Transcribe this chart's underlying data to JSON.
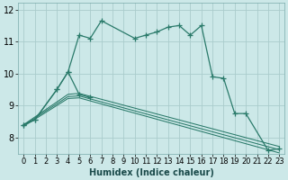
{
  "xlabel": "Humidex (Indice chaleur)",
  "background_color": "#cce8e8",
  "grid_color": "#aacccc",
  "line_color": "#2a7a6a",
  "xlim": [
    -0.5,
    23.5
  ],
  "ylim": [
    7.5,
    12.2
  ],
  "yticks": [
    8,
    9,
    10,
    11,
    12
  ],
  "xticks": [
    0,
    1,
    2,
    3,
    4,
    5,
    6,
    7,
    8,
    9,
    10,
    11,
    12,
    13,
    14,
    15,
    16,
    17,
    18,
    19,
    20,
    21,
    22,
    23
  ],
  "curve1_x": [
    0,
    1,
    3,
    4,
    5,
    6,
    7,
    10,
    11,
    12,
    13,
    14,
    15,
    16,
    17,
    18,
    19,
    20,
    22,
    23
  ],
  "curve1_y": [
    8.4,
    8.55,
    9.5,
    10.05,
    11.2,
    11.1,
    11.65,
    11.1,
    11.2,
    11.3,
    11.45,
    11.5,
    11.2,
    11.5,
    9.9,
    9.85,
    8.75,
    8.75,
    7.6,
    7.65
  ],
  "curve2_x": [
    0,
    1,
    3,
    4,
    5,
    6
  ],
  "curve2_y": [
    8.4,
    8.55,
    9.5,
    10.05,
    9.35,
    9.25
  ],
  "line1_x": [
    0,
    4,
    5,
    23
  ],
  "line1_y": [
    8.4,
    9.35,
    9.38,
    7.72
  ],
  "line2_x": [
    0,
    4,
    5,
    23
  ],
  "line2_y": [
    8.38,
    9.28,
    9.3,
    7.62
  ],
  "line3_x": [
    0,
    4,
    5,
    23
  ],
  "line3_y": [
    8.35,
    9.22,
    9.24,
    7.52
  ]
}
